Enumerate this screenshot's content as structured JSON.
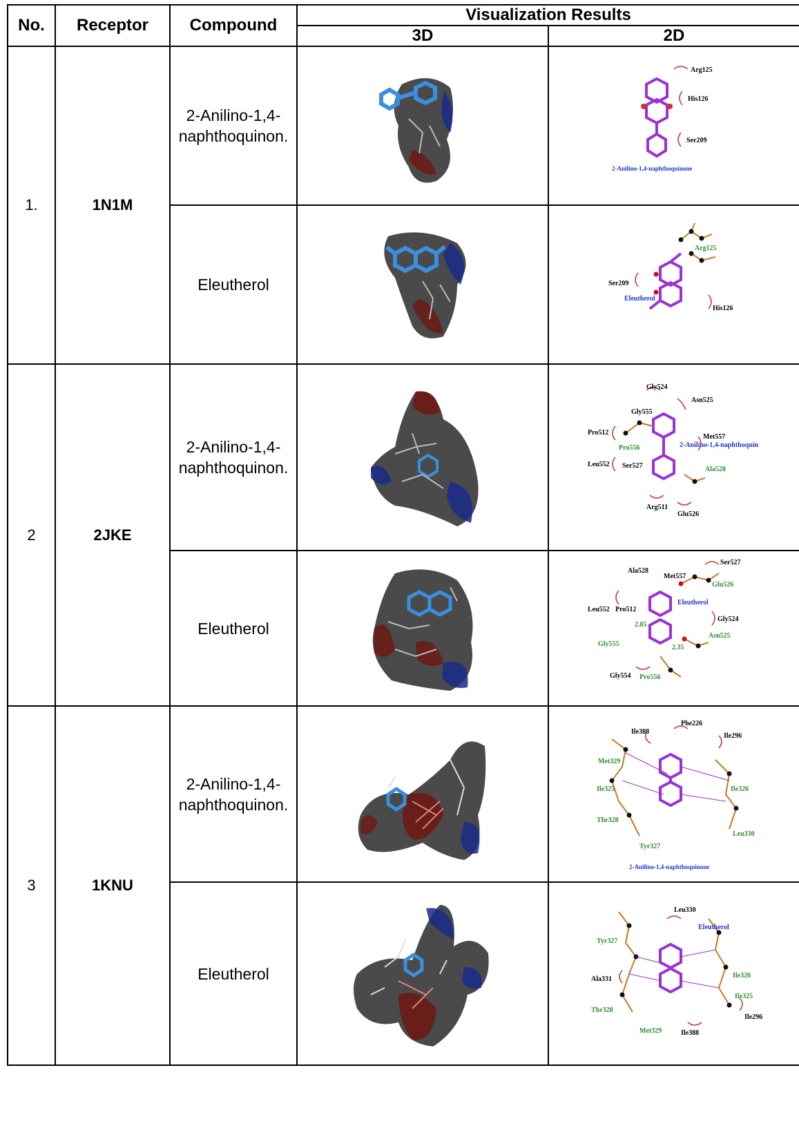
{
  "table": {
    "headers": {
      "no": "No.",
      "receptor": "Receptor",
      "compound": "Compound",
      "visualization": "Visualization Results",
      "d3": "3D",
      "d2": "2D"
    },
    "rows": [
      {
        "no": "1.",
        "receptor": "1N1M",
        "compounds": [
          {
            "name": "2-Anilino-1,4-naphthoquinon.",
            "residues": [
              "Arg125",
              "His126",
              "Ser209"
            ],
            "ligand_label": "2-Anilino-1,4-naphthoquinone"
          },
          {
            "name": "Eleutherol",
            "residues": [
              "Arg125",
              "Ser209",
              "His126"
            ],
            "ligand_label": "Eleutherol"
          }
        ]
      },
      {
        "no": "2",
        "receptor": "2JKE",
        "compounds": [
          {
            "name": "2-Anilino-1,4-naphthoquinon.",
            "residues": [
              "Gly524",
              "Asn525",
              "Gly555",
              "Pro512",
              "Met557",
              "Pro556",
              "Leu552",
              "Ser527",
              "Ala528",
              "Arg511",
              "Glu526"
            ],
            "ligand_label": "2-Anilino-1,4-naphthoquin"
          },
          {
            "name": "Eleutherol",
            "residues": [
              "Ser527",
              "Ala528",
              "Met557",
              "Glu526",
              "Leu552",
              "Pro512",
              "Gly524",
              "Gly555",
              "Asn525",
              "Gly554",
              "Pro556"
            ],
            "ligand_label": "Eleutherol",
            "distances": [
              "2.85",
              "2.35"
            ]
          }
        ]
      },
      {
        "no": "3",
        "receptor": "1KNU",
        "compounds": [
          {
            "name": "2-Anilino-1,4-naphthoquinon.",
            "residues": [
              "Phe226",
              "Ile388",
              "Ile296",
              "Met329",
              "Ile325",
              "Ile326",
              "Thr328",
              "Leu330",
              "Tyr327"
            ],
            "ligand_label": "2-Anilino-1,4-naphthoquinone"
          },
          {
            "name": "Eleutherol",
            "residues": [
              "Leu330",
              "Tyr327",
              "Ala331",
              "Ile326",
              "Thr328",
              "Ile325",
              "Met329",
              "Ile388",
              "Ile296"
            ],
            "ligand_label": "Eleutherol"
          }
        ]
      }
    ]
  },
  "colors": {
    "ligand_bond": "#9b30d9",
    "residue_bond": "#c87a1e",
    "hydrophobic_arc": "#d03030",
    "green_label": "#2e8b2e",
    "blue_label": "#2233cc",
    "surface_dark": "#4a4a4a",
    "surface_red": "#6b1a14",
    "surface_blue": "#1a2a8a",
    "ligand_3d": "#3a8fe0"
  }
}
